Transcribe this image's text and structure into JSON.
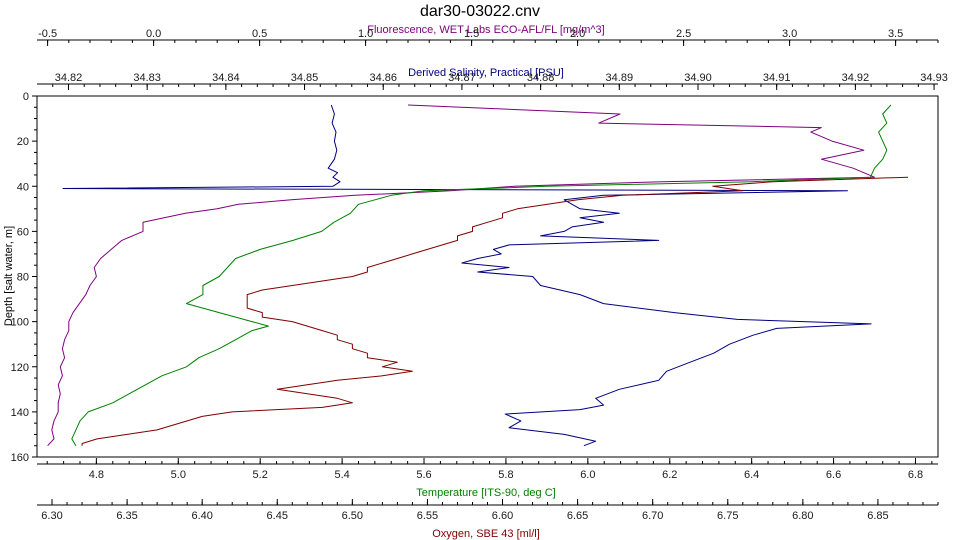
{
  "chart_data": {
    "type": "line",
    "title": "dar30-03022.cnv",
    "grid": false,
    "y_axis": {
      "label": "Depth [salt water, m]",
      "ticks": [
        0,
        20,
        40,
        60,
        80,
        100,
        120,
        140,
        160
      ],
      "range": [
        0,
        160
      ],
      "inverted": true
    },
    "x_axes": [
      {
        "id": "fluorescence",
        "label": "Fluorescence, WET Labs ECO-AFL/FL [mg/m^3]",
        "position": "top-outer",
        "color": "#800080",
        "range": [
          -0.55,
          3.7
        ],
        "ticks": [
          -0.5,
          0.0,
          0.5,
          1.0,
          1.5,
          2.0,
          2.5,
          3.0,
          3.5
        ],
        "tick_labels": [
          "-0.5",
          "0.0",
          "0.5",
          "1.0",
          "1.5",
          "2.0",
          "2.5",
          "3.0",
          "3.5"
        ]
      },
      {
        "id": "salinity",
        "label": "Derived Salinity, Practical [PSU]",
        "position": "top-inner",
        "color": "#000080",
        "range": [
          34.816,
          34.9305
        ],
        "ticks": [
          34.82,
          34.83,
          34.84,
          34.85,
          34.86,
          34.87,
          34.88,
          34.89,
          34.9,
          34.91,
          34.92,
          34.93
        ],
        "tick_labels": [
          "34.82",
          "34.83",
          "34.84",
          "34.85",
          "34.86",
          "34.87",
          "34.88",
          "34.89",
          "34.90",
          "34.91",
          "34.92",
          "34.93"
        ]
      },
      {
        "id": "temperature",
        "label": "Temperature [ITS-90, deg C]",
        "position": "bottom-inner",
        "color": "#008000",
        "range": [
          4.655,
          6.855
        ],
        "ticks": [
          4.8,
          5.0,
          5.2,
          5.4,
          5.6,
          5.8,
          6.0,
          6.2,
          6.4,
          6.6,
          6.8
        ],
        "tick_labels": [
          "4.8",
          "5.0",
          "5.2",
          "5.4",
          "5.6",
          "5.8",
          "6.0",
          "6.2",
          "6.4",
          "6.6",
          "6.8"
        ]
      },
      {
        "id": "oxygen",
        "label": "Oxygen, SBE 43 [ml/l]",
        "position": "bottom-outer",
        "color": "#800000",
        "range": [
          6.29,
          6.89
        ],
        "ticks": [
          6.3,
          6.35,
          6.4,
          6.45,
          6.5,
          6.55,
          6.6,
          6.65,
          6.7,
          6.75,
          6.8,
          6.85
        ],
        "tick_labels": [
          "6.30",
          "6.35",
          "6.40",
          "6.45",
          "6.50",
          "6.55",
          "6.60",
          "6.65",
          "6.70",
          "6.75",
          "6.80",
          "6.85"
        ]
      }
    ],
    "series": [
      {
        "axis": "salinity",
        "color": "#000080",
        "depth": [
          4,
          8,
          12,
          16,
          20,
          24,
          28,
          32,
          34,
          36,
          38,
          40,
          41,
          42,
          44,
          46,
          48,
          50,
          52,
          54,
          56,
          58,
          60,
          62,
          64,
          66,
          68,
          70,
          72,
          74,
          76,
          78,
          80,
          84,
          88,
          92,
          96,
          99,
          101,
          103,
          106,
          110,
          114,
          118,
          122,
          126,
          130,
          134,
          137,
          139,
          141,
          144,
          147,
          150,
          153,
          155
        ],
        "values": [
          34.8534,
          34.8538,
          34.8535,
          34.854,
          34.8538,
          34.8541,
          34.8538,
          34.853,
          34.8542,
          34.8536,
          34.8545,
          34.8536,
          34.8193,
          34.919,
          34.888,
          34.883,
          34.884,
          34.885,
          34.89,
          34.885,
          34.888,
          34.884,
          34.883,
          34.88,
          34.895,
          34.876,
          34.874,
          34.875,
          34.872,
          34.87,
          34.876,
          34.872,
          34.879,
          34.88,
          34.885,
          34.888,
          34.897,
          34.905,
          34.922,
          34.91,
          34.907,
          34.904,
          34.902,
          34.899,
          34.896,
          34.895,
          34.89,
          34.887,
          34.888,
          34.885,
          34.8755,
          34.8775,
          34.876,
          34.883,
          34.887,
          34.8855
        ]
      },
      {
        "axis": "fluorescence",
        "color": "#800080",
        "depth": [
          4,
          8,
          12,
          14,
          16,
          20,
          24,
          28,
          32,
          36,
          38,
          40,
          42,
          44,
          46,
          48,
          50,
          52,
          54,
          56,
          60,
          64,
          68,
          72,
          76,
          80,
          84,
          88,
          92,
          96,
          100,
          104,
          108,
          112,
          116,
          120,
          124,
          128,
          132,
          136,
          140,
          144,
          148,
          152,
          155
        ],
        "values": [
          1.2,
          2.2,
          2.1,
          3.15,
          3.1,
          3.2,
          3.35,
          3.15,
          3.3,
          3.4,
          2.4,
          1.7,
          1.4,
          0.95,
          0.65,
          0.4,
          0.3,
          0.15,
          0.05,
          -0.05,
          -0.05,
          -0.15,
          -0.2,
          -0.25,
          -0.28,
          -0.27,
          -0.3,
          -0.32,
          -0.35,
          -0.38,
          -0.4,
          -0.4,
          -0.42,
          -0.43,
          -0.42,
          -0.44,
          -0.43,
          -0.45,
          -0.44,
          -0.45,
          -0.45,
          -0.47,
          -0.48,
          -0.47,
          -0.5
        ]
      },
      {
        "axis": "temperature",
        "color": "#008000",
        "depth": [
          4,
          8,
          12,
          16,
          20,
          24,
          28,
          32,
          36,
          38,
          40,
          42,
          44,
          46,
          48,
          50,
          52,
          56,
          60,
          64,
          68,
          72,
          76,
          80,
          84,
          88,
          92,
          94,
          96,
          98,
          100,
          102,
          104,
          108,
          112,
          116,
          120,
          124,
          128,
          132,
          136,
          140,
          144,
          148,
          152,
          155
        ],
        "values": [
          6.74,
          6.72,
          6.73,
          6.71,
          6.72,
          6.73,
          6.72,
          6.7,
          6.69,
          6.4,
          5.9,
          5.6,
          5.52,
          5.48,
          5.44,
          5.43,
          5.42,
          5.38,
          5.35,
          5.28,
          5.2,
          5.14,
          5.12,
          5.1,
          5.06,
          5.06,
          5.02,
          5.06,
          5.1,
          5.14,
          5.18,
          5.22,
          5.18,
          5.14,
          5.1,
          5.05,
          5.02,
          4.96,
          4.92,
          4.88,
          4.84,
          4.78,
          4.76,
          4.75,
          4.74,
          4.75
        ]
      },
      {
        "axis": "oxygen",
        "color": "#800000",
        "depth": [
          36,
          38,
          40,
          42,
          44,
          46,
          48,
          50,
          52,
          54,
          56,
          58,
          60,
          62,
          64,
          66,
          68,
          70,
          72,
          74,
          76,
          78,
          80,
          82,
          84,
          86,
          88,
          90,
          92,
          94,
          96,
          98,
          100,
          102,
          104,
          106,
          108,
          110,
          112,
          114,
          116,
          118,
          120,
          122,
          124,
          126,
          128,
          130,
          132,
          134,
          136,
          138,
          140,
          142,
          144,
          146,
          148,
          150,
          152,
          154,
          155
        ],
        "values": [
          6.87,
          6.78,
          6.74,
          6.76,
          6.68,
          6.65,
          6.63,
          6.61,
          6.6,
          6.6,
          6.59,
          6.58,
          6.58,
          6.57,
          6.57,
          6.56,
          6.55,
          6.54,
          6.53,
          6.52,
          6.51,
          6.51,
          6.5,
          6.48,
          6.46,
          6.44,
          6.43,
          6.43,
          6.43,
          6.43,
          6.44,
          6.44,
          6.46,
          6.47,
          6.48,
          6.49,
          6.49,
          6.5,
          6.5,
          6.51,
          6.51,
          6.53,
          6.52,
          6.54,
          6.52,
          6.49,
          6.47,
          6.45,
          6.47,
          6.49,
          6.5,
          6.48,
          6.42,
          6.4,
          6.39,
          6.38,
          6.37,
          6.35,
          6.33,
          6.32,
          6.32
        ]
      }
    ]
  }
}
